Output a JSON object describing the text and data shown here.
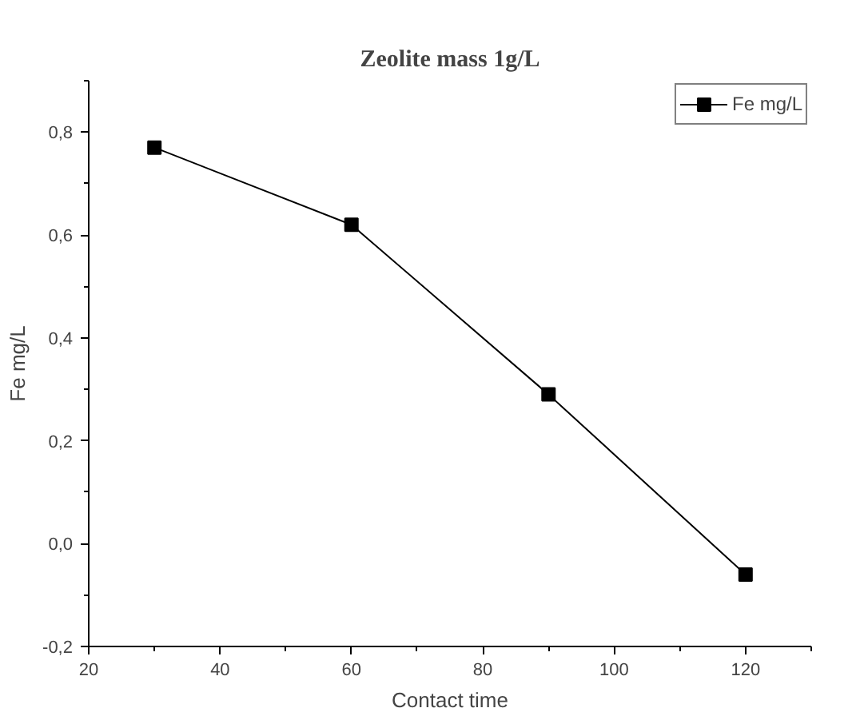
{
  "chart_data": {
    "type": "line",
    "title": "Zeolite mass 1g/L",
    "xlabel": "Contact time",
    "ylabel": "Fe mg/L",
    "x": [
      30,
      60,
      90,
      120
    ],
    "series": [
      {
        "name": "Fe mg/L",
        "color": "#000000",
        "values": [
          0.77,
          0.62,
          0.29,
          -0.06
        ]
      }
    ],
    "xlim": [
      20,
      130
    ],
    "xticks": [
      20,
      40,
      60,
      80,
      100,
      120
    ],
    "ylim": [
      -0.2,
      0.9
    ],
    "yticks": [
      {
        "value": -0.2,
        "label": "-0,2"
      },
      {
        "value": 0.0,
        "label": "0,0"
      },
      {
        "value": 0.2,
        "label": "0,2"
      },
      {
        "value": 0.4,
        "label": "0,4"
      },
      {
        "value": 0.6,
        "label": "0,6"
      },
      {
        "value": 0.8,
        "label": "0,8"
      }
    ],
    "marker": "square",
    "line_style": "solid",
    "grid": false,
    "legend": "top right"
  }
}
